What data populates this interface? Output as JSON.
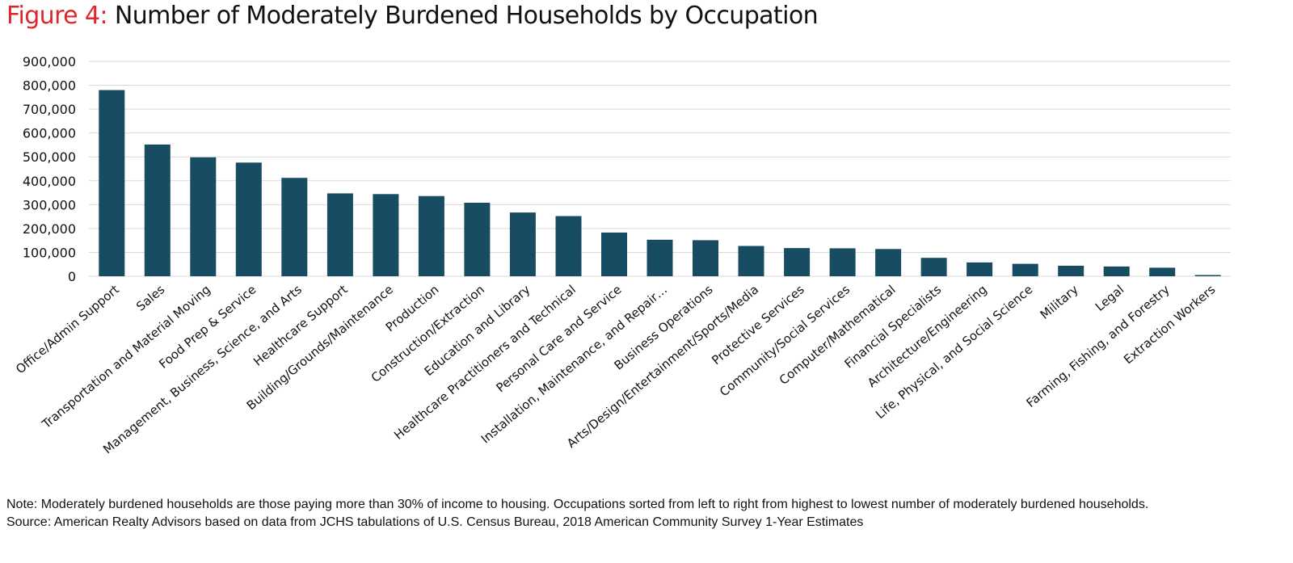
{
  "figure": {
    "title_prefix": "Figure 4:",
    "title_main": "Number of Moderately Burdened Households by Occupation",
    "note": "Note: Moderately burdened households are those paying more than 30% of income to housing. Occupations sorted from left to right from highest to lowest number of moderately burdened households.",
    "source": "Source: American Realty Advisors based on data from JCHS tabulations of U.S. Census Bureau, 2018 American Community Survey 1-Year Estimates"
  },
  "colors": {
    "bar": "#174c62",
    "gridline": "#d9d9d9",
    "title_accent": "#e0262b",
    "text": "#111111"
  },
  "chart_data": {
    "type": "bar",
    "categories": [
      "Office/Admin Support",
      "Sales",
      "Transportation and Material Moving",
      "Food Prep & Service",
      "Management, Business, Science, and Arts",
      "Healthcare Support",
      "Building/Grounds/Maintenance",
      "Production",
      "Construction/Extraction",
      "Education and Library",
      "Healthcare Practitioners and Technical",
      "Personal Care and Service",
      "Installation, Maintenance, and Repair…",
      "Business Operations",
      "Arts/Design/Entertainment/Sports/Media",
      "Protective Services",
      "Community/Social Services",
      "Computer/Mathematical",
      "Financial Specialists",
      "Architecture/Engineering",
      "Life, Physical, and Social Science",
      "Military",
      "Legal",
      "Farming, Fishing, and Forestry",
      "Extraction Workers"
    ],
    "values": [
      780000,
      552000,
      498000,
      476000,
      412000,
      347000,
      344000,
      336000,
      308000,
      267000,
      252000,
      183000,
      153000,
      151000,
      127000,
      118000,
      117000,
      114000,
      77000,
      58000,
      52000,
      44000,
      41000,
      36000,
      5000
    ],
    "yticks": [
      "0",
      "100,000",
      "200,000",
      "300,000",
      "400,000",
      "500,000",
      "600,000",
      "700,000",
      "800,000",
      "900,000"
    ],
    "ylim": [
      0,
      900000
    ],
    "grid": true,
    "legend": "none",
    "xlabel": "",
    "ylabel": ""
  }
}
